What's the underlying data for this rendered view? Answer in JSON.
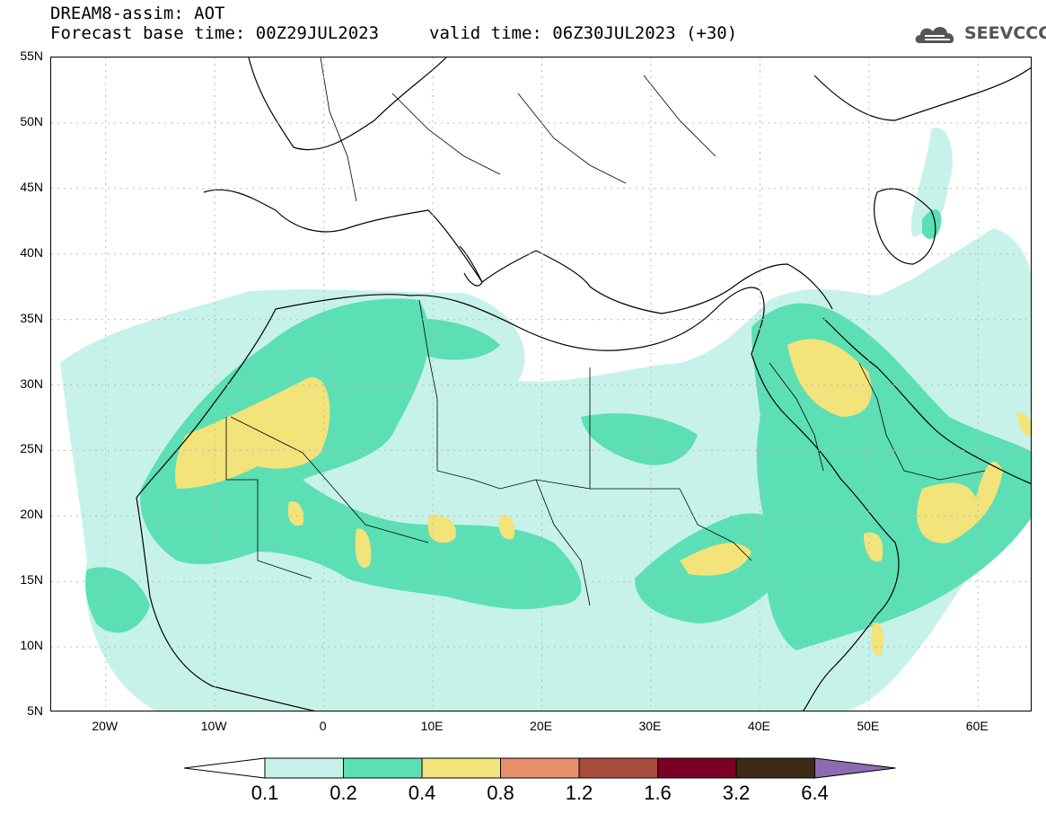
{
  "header": {
    "title": "DREAM8-assim: AOT",
    "base_time": "Forecast base time: 00Z29JUL2023",
    "valid_time": "valid time: 06Z30JUL2023 (+30)"
  },
  "logo": {
    "text": "SEEVCCC",
    "icon": "cloud-logo-icon"
  },
  "map": {
    "lat_labels": [
      "55N",
      "50N",
      "45N",
      "40N",
      "35N",
      "30N",
      "25N",
      "20N",
      "15N",
      "10N",
      "5N"
    ],
    "lon_labels": [
      "20W",
      "10W",
      "0",
      "10E",
      "20E",
      "30E",
      "40E",
      "50E",
      "60E"
    ],
    "lon_range": [
      -25,
      65
    ],
    "lat_range": [
      5,
      55
    ],
    "colors": {
      "land_outline": "#000000",
      "graticule": "#bbbbbb"
    }
  },
  "colorbar": {
    "labels": [
      "0.1",
      "0.2",
      "0.4",
      "0.8",
      "1.2",
      "1.6",
      "3.2",
      "6.4"
    ],
    "colors": [
      "#ffffff",
      "#c6f2ea",
      "#5cdfb4",
      "#f2e37a",
      "#e8906a",
      "#a84d3e",
      "#7a0026",
      "#3d2a14",
      "#8c6cb0"
    ]
  }
}
